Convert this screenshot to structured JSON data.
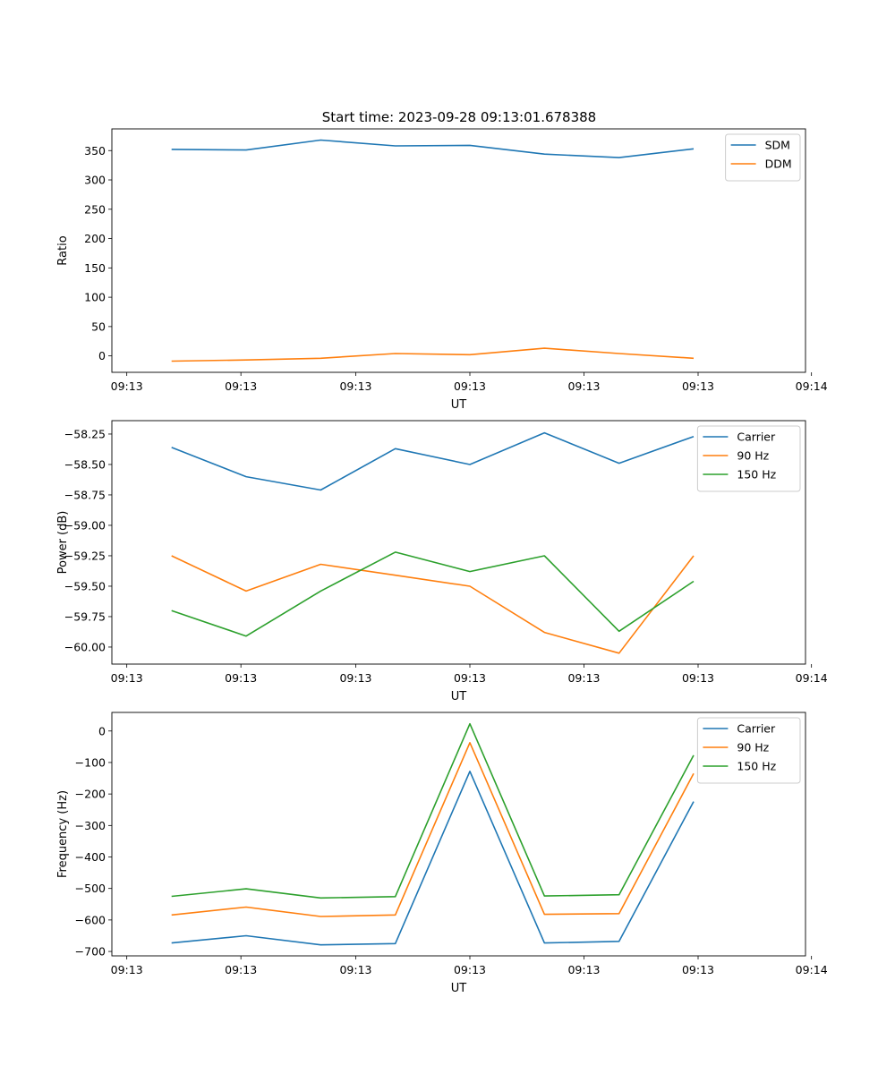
{
  "figure": {
    "title": "Start time: 2023-09-28 09:13:01.678388"
  },
  "chart_data": [
    {
      "type": "line",
      "title": "Start time: 2023-09-28 09:13:01.678388",
      "xlabel": "UT",
      "ylabel": "Ratio",
      "x": [
        1,
        2,
        3,
        4,
        5,
        6,
        7,
        8
      ],
      "xlim": [
        0.2,
        9.5
      ],
      "x_ticks": [
        0.4,
        1.93,
        3.47,
        5.0,
        6.53,
        8.06,
        9.58
      ],
      "x_tick_labels": [
        "09:13",
        "09:13",
        "09:13",
        "09:13",
        "09:13",
        "09:13",
        "09:14"
      ],
      "ylim": [
        -28,
        387
      ],
      "y_ticks": [
        0,
        50,
        100,
        150,
        200,
        250,
        300,
        350
      ],
      "y_tick_labels": [
        "0",
        "50",
        "100",
        "150",
        "200",
        "250",
        "300",
        "350"
      ],
      "legend_position": "top-right",
      "series": [
        {
          "name": "SDM",
          "color": "#1f77b4",
          "values": [
            352,
            351,
            368,
            358,
            359,
            344,
            338,
            353
          ]
        },
        {
          "name": "DDM",
          "color": "#ff7f0e",
          "values": [
            -9,
            -7,
            -4,
            4,
            2,
            13,
            4,
            -4
          ]
        }
      ]
    },
    {
      "type": "line",
      "title": "",
      "xlabel": "UT",
      "ylabel": "Power (dB)",
      "x": [
        1,
        2,
        3,
        4,
        5,
        6,
        7,
        8
      ],
      "xlim": [
        0.2,
        9.5
      ],
      "x_ticks": [
        0.4,
        1.93,
        3.47,
        5.0,
        6.53,
        8.06,
        9.58
      ],
      "x_tick_labels": [
        "09:13",
        "09:13",
        "09:13",
        "09:13",
        "09:13",
        "09:13",
        "09:14"
      ],
      "ylim": [
        -60.14,
        -58.14
      ],
      "y_ticks": [
        -60.0,
        -59.75,
        -59.5,
        -59.25,
        -59.0,
        -58.75,
        -58.5,
        -58.25
      ],
      "y_tick_labels": [
        "−60.00",
        "−59.75",
        "−59.50",
        "−59.25",
        "−59.00",
        "−58.75",
        "−58.50",
        "−58.25"
      ],
      "legend_position": "top-right",
      "series": [
        {
          "name": "Carrier",
          "color": "#1f77b4",
          "values": [
            -58.36,
            -58.6,
            -58.71,
            -58.37,
            -58.5,
            -58.24,
            -58.49,
            -58.27
          ]
        },
        {
          "name": "90 Hz",
          "color": "#ff7f0e",
          "values": [
            -59.25,
            -59.54,
            -59.32,
            -59.41,
            -59.5,
            -59.88,
            -60.05,
            -59.25
          ]
        },
        {
          "name": "150 Hz",
          "color": "#2ca02c",
          "values": [
            -59.7,
            -59.91,
            -59.54,
            -59.22,
            -59.38,
            -59.25,
            -59.87,
            -59.46
          ]
        }
      ]
    },
    {
      "type": "line",
      "title": "",
      "xlabel": "UT",
      "ylabel": "Frequency (Hz)",
      "x": [
        1,
        2,
        3,
        4,
        5,
        6,
        7,
        8
      ],
      "xlim": [
        0.2,
        9.5
      ],
      "x_ticks": [
        0.4,
        1.93,
        3.47,
        5.0,
        6.53,
        8.06,
        9.58
      ],
      "x_tick_labels": [
        "09:13",
        "09:13",
        "09:13",
        "09:13",
        "09:13",
        "09:13",
        "09:14"
      ],
      "ylim": [
        -714,
        59
      ],
      "y_ticks": [
        -700,
        -600,
        -500,
        -400,
        -300,
        -200,
        -100,
        0
      ],
      "y_tick_labels": [
        "−700",
        "−600",
        "−500",
        "−400",
        "−300",
        "−200",
        "−100",
        "0"
      ],
      "legend_position": "top-right",
      "series": [
        {
          "name": "Carrier",
          "color": "#1f77b4",
          "values": [
            -673,
            -650,
            -679,
            -675,
            -128,
            -673,
            -668,
            -224
          ]
        },
        {
          "name": "90 Hz",
          "color": "#ff7f0e",
          "values": [
            -584,
            -559,
            -589,
            -584,
            -37,
            -582,
            -580,
            -135
          ]
        },
        {
          "name": "150 Hz",
          "color": "#2ca02c",
          "values": [
            -525,
            -501,
            -530,
            -526,
            23,
            -524,
            -520,
            -77
          ]
        }
      ]
    }
  ]
}
